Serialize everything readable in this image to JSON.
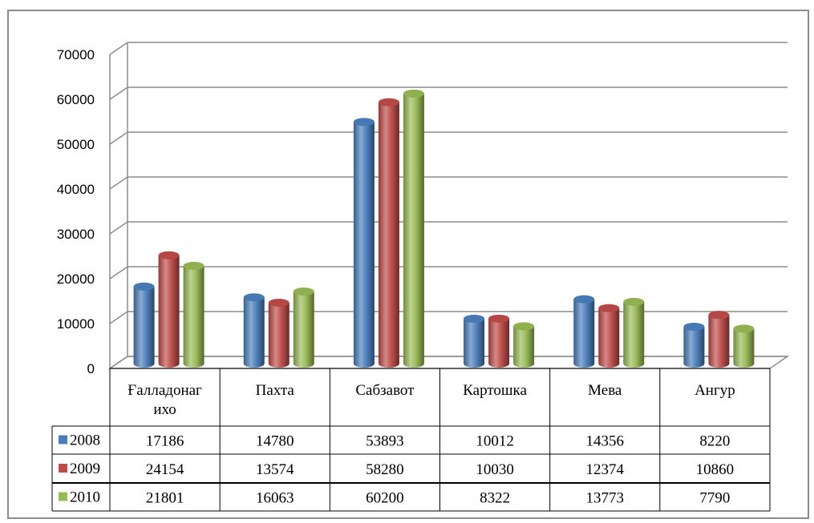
{
  "chart_data": {
    "type": "bar",
    "categories": [
      "Ғалладонаг ихо",
      "Пахта",
      "Сабзавот",
      "Картошка",
      "Мева",
      "Ангур"
    ],
    "category_lines": [
      [
        "Ғалладонаг",
        "ихо"
      ],
      [
        "Пахта"
      ],
      [
        "Сабзавот"
      ],
      [
        "Картошка"
      ],
      [
        "Мева"
      ],
      [
        "Ангур"
      ]
    ],
    "series": [
      {
        "name": "2008",
        "values": [
          17186,
          14780,
          53893,
          10012,
          14356,
          8220
        ],
        "color": "#4a7ebb"
      },
      {
        "name": "2009",
        "values": [
          24154,
          13574,
          58280,
          10030,
          12374,
          10860
        ],
        "color": "#be4b48"
      },
      {
        "name": "2010",
        "values": [
          21801,
          16063,
          60200,
          8322,
          13773,
          7790
        ],
        "color": "#98b954"
      }
    ],
    "ylim": [
      0,
      70000
    ],
    "yticks": [
      "0",
      "10000",
      "20000",
      "30000",
      "40000",
      "50000",
      "60000",
      "70000"
    ],
    "table_values": [
      [
        "17186",
        "14780",
        "53893",
        "10012",
        "14356",
        "8220"
      ],
      [
        "24154",
        "13574",
        "58280",
        "10030",
        "12374",
        "10860"
      ],
      [
        "21801",
        "16063",
        "60200",
        "8322",
        "13773",
        "7790"
      ]
    ],
    "grid": true,
    "legend": "data-table",
    "style": "3d-cylinder"
  }
}
